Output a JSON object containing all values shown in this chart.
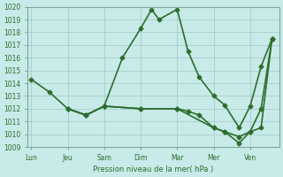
{
  "title": "Pression niveau de la mer( hPa )",
  "background_color": "#c8eae8",
  "grid_color": "#a0c8c8",
  "line_color": "#2d6e2d",
  "ylim": [
    1009,
    1020
  ],
  "yticks": [
    1009,
    1010,
    1011,
    1012,
    1013,
    1014,
    1015,
    1016,
    1017,
    1018,
    1019,
    1020
  ],
  "xlabels": [
    "Lun",
    "Jeu",
    "Sam",
    "Dim",
    "Mar",
    "Mer",
    "Ven"
  ],
  "xtick_positions": [
    0,
    1,
    2,
    3,
    4,
    5,
    6
  ],
  "series1_x": [
    0,
    0.5,
    1,
    1.5,
    2,
    2.5,
    3,
    3.3,
    3.5,
    4,
    4.3,
    4.6,
    5,
    5.3,
    5.7,
    6,
    6.3,
    6.6
  ],
  "series1_y": [
    1014.3,
    1013.3,
    1012.0,
    1011.5,
    1012.2,
    1016.0,
    1018.3,
    1019.8,
    1019.0,
    1019.8,
    1016.5,
    1014.5,
    1013.0,
    1012.3,
    1010.5,
    1012.2,
    1015.3,
    1017.5
  ],
  "series2_x": [
    1,
    1.5,
    2,
    3,
    4,
    5,
    5.3,
    5.7,
    6,
    6.3,
    6.6
  ],
  "series2_y": [
    1012.0,
    1011.5,
    1012.2,
    1012.0,
    1012.0,
    1010.5,
    1010.2,
    1009.8,
    1010.2,
    1012.0,
    1017.5
  ],
  "series3_x": [
    1,
    1.5,
    2,
    3,
    4,
    4.3,
    4.6,
    5,
    5.3,
    5.7,
    6,
    6.3,
    6.6
  ],
  "series3_y": [
    1012.0,
    1011.5,
    1012.2,
    1012.0,
    1012.0,
    1011.8,
    1011.5,
    1010.5,
    1010.2,
    1009.3,
    1010.2,
    1010.5,
    1017.5
  ],
  "marker_size": 2.5,
  "line_width": 1.2
}
